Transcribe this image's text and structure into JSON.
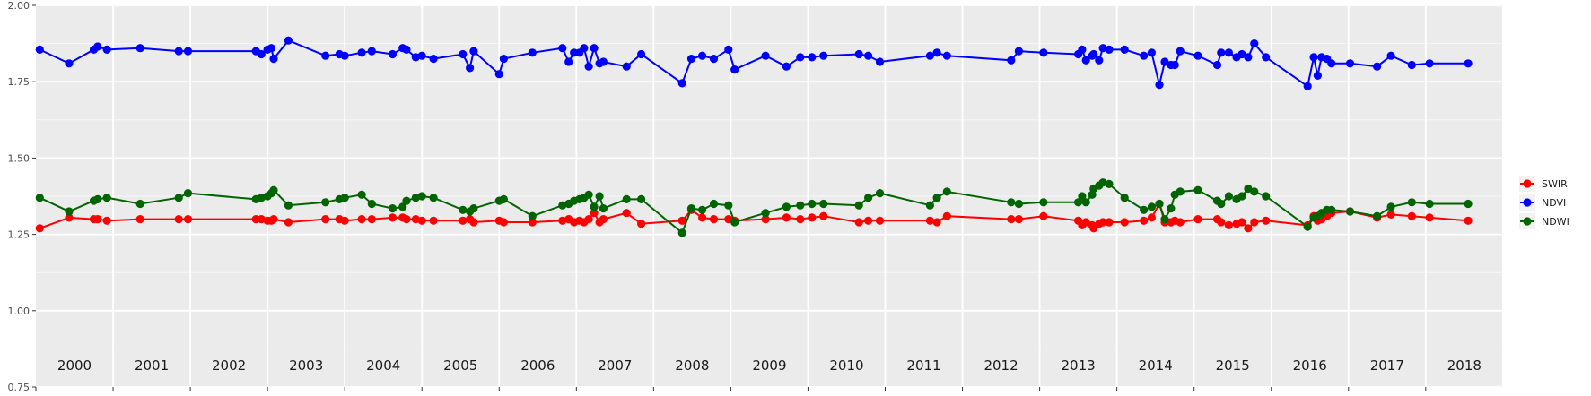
{
  "chart_data": {
    "type": "line",
    "title": "",
    "xlabel": "",
    "ylabel": "",
    "xlim": [
      2000.0,
      2018.99
    ],
    "ylim": [
      0.75,
      2.0
    ],
    "yticks": [
      "0.75",
      "1.00",
      "1.25",
      "1.50",
      "1.75",
      "2.00"
    ],
    "year_labels": [
      "2000",
      "2001",
      "2002",
      "2003",
      "2004",
      "2005",
      "2006",
      "2007",
      "2008",
      "2009",
      "2010",
      "2011",
      "2012",
      "2013",
      "2014",
      "2015",
      "2016",
      "2017",
      "2018"
    ],
    "grid": true,
    "legend_position": "right",
    "series": [
      {
        "name": "SWIR",
        "color": "#ff0000",
        "x": [
          2000.05,
          2000.43,
          2000.75,
          2000.8,
          2000.92,
          2001.35,
          2001.85,
          2001.97,
          2002.85,
          2002.92,
          2003.0,
          2003.05,
          2003.08,
          2003.27,
          2003.75,
          2003.93,
          2004.0,
          2004.22,
          2004.35,
          2004.62,
          2004.75,
          2004.8,
          2004.92,
          2005.0,
          2005.15,
          2005.53,
          2005.62,
          2005.67,
          2006.0,
          2006.06,
          2006.43,
          2006.82,
          2006.9,
          2006.97,
          2007.04,
          2007.1,
          2007.16,
          2007.23,
          2007.3,
          2007.35,
          2007.65,
          2007.84,
          2008.37,
          2008.49,
          2008.63,
          2008.78,
          2008.97,
          2009.05,
          2009.45,
          2009.72,
          2009.9,
          2010.05,
          2010.2,
          2010.66,
          2010.78,
          2010.93,
          2011.58,
          2011.67,
          2011.8,
          2012.63,
          2012.73,
          2013.05,
          2013.5,
          2013.55,
          2013.6,
          2013.68,
          2013.7,
          2013.77,
          2013.82,
          2013.9,
          2014.1,
          2014.35,
          2014.45,
          2014.55,
          2014.62,
          2014.7,
          2014.75,
          2014.82,
          2015.05,
          2015.3,
          2015.35,
          2015.45,
          2015.55,
          2015.62,
          2015.7,
          2015.78,
          2015.93,
          2016.47,
          2016.55,
          2016.6,
          2016.65,
          2016.72,
          2016.78,
          2017.02,
          2017.37,
          2017.55,
          2017.82,
          2018.05,
          2018.55
        ],
        "values": [
          1.27,
          1.305,
          1.3,
          1.3,
          1.295,
          1.3,
          1.3,
          1.3,
          1.3,
          1.3,
          1.295,
          1.295,
          1.3,
          1.29,
          1.3,
          1.3,
          1.295,
          1.3,
          1.3,
          1.305,
          1.305,
          1.3,
          1.3,
          1.295,
          1.295,
          1.295,
          1.3,
          1.29,
          1.295,
          1.29,
          1.29,
          1.295,
          1.3,
          1.29,
          1.295,
          1.29,
          1.3,
          1.32,
          1.29,
          1.3,
          1.32,
          1.285,
          1.295,
          1.33,
          1.305,
          1.3,
          1.3,
          1.295,
          1.3,
          1.305,
          1.3,
          1.305,
          1.31,
          1.29,
          1.295,
          1.295,
          1.295,
          1.29,
          1.31,
          1.3,
          1.3,
          1.31,
          1.295,
          1.28,
          1.29,
          1.28,
          1.27,
          1.285,
          1.29,
          1.29,
          1.29,
          1.295,
          1.305,
          1.35,
          1.29,
          1.29,
          1.295,
          1.29,
          1.3,
          1.3,
          1.29,
          1.28,
          1.285,
          1.29,
          1.27,
          1.29,
          1.295,
          1.28,
          1.31,
          1.295,
          1.3,
          1.31,
          1.32,
          1.325,
          1.305,
          1.315,
          1.31,
          1.305,
          1.295
        ]
      },
      {
        "name": "NDVI",
        "color": "#0000ff",
        "x": [
          2000.05,
          2000.43,
          2000.75,
          2000.8,
          2000.92,
          2001.35,
          2001.85,
          2001.97,
          2002.85,
          2002.92,
          2003.0,
          2003.05,
          2003.08,
          2003.27,
          2003.75,
          2003.93,
          2004.0,
          2004.22,
          2004.35,
          2004.62,
          2004.75,
          2004.8,
          2004.92,
          2005.0,
          2005.15,
          2005.53,
          2005.62,
          2005.67,
          2006.0,
          2006.06,
          2006.43,
          2006.82,
          2006.9,
          2006.97,
          2007.04,
          2007.1,
          2007.16,
          2007.23,
          2007.3,
          2007.35,
          2007.65,
          2007.84,
          2008.37,
          2008.49,
          2008.63,
          2008.78,
          2008.97,
          2009.05,
          2009.45,
          2009.72,
          2009.9,
          2010.05,
          2010.2,
          2010.66,
          2010.78,
          2010.93,
          2011.58,
          2011.67,
          2011.8,
          2012.63,
          2012.73,
          2013.05,
          2013.5,
          2013.55,
          2013.6,
          2013.68,
          2013.7,
          2013.77,
          2013.82,
          2013.9,
          2014.1,
          2014.35,
          2014.45,
          2014.55,
          2014.62,
          2014.7,
          2014.75,
          2014.82,
          2015.05,
          2015.3,
          2015.35,
          2015.45,
          2015.55,
          2015.62,
          2015.7,
          2015.78,
          2015.93,
          2016.47,
          2016.55,
          2016.6,
          2016.65,
          2016.72,
          2016.78,
          2017.02,
          2017.37,
          2017.55,
          2017.82,
          2018.05,
          2018.55
        ],
        "values": [
          1.855,
          1.81,
          1.855,
          1.865,
          1.855,
          1.86,
          1.85,
          1.85,
          1.85,
          1.84,
          1.855,
          1.86,
          1.825,
          1.885,
          1.835,
          1.84,
          1.835,
          1.845,
          1.85,
          1.84,
          1.86,
          1.855,
          1.83,
          1.835,
          1.825,
          1.84,
          1.795,
          1.85,
          1.775,
          1.825,
          1.845,
          1.86,
          1.815,
          1.845,
          1.845,
          1.86,
          1.8,
          1.86,
          1.81,
          1.815,
          1.8,
          1.84,
          1.745,
          1.825,
          1.835,
          1.825,
          1.855,
          1.79,
          1.835,
          1.8,
          1.83,
          1.83,
          1.835,
          1.84,
          1.835,
          1.815,
          1.835,
          1.845,
          1.835,
          1.82,
          1.85,
          1.845,
          1.84,
          1.855,
          1.82,
          1.835,
          1.84,
          1.82,
          1.86,
          1.855,
          1.855,
          1.835,
          1.845,
          1.74,
          1.815,
          1.805,
          1.805,
          1.85,
          1.835,
          1.805,
          1.845,
          1.845,
          1.83,
          1.84,
          1.83,
          1.875,
          1.83,
          1.735,
          1.83,
          1.77,
          1.83,
          1.825,
          1.81,
          1.81,
          1.8,
          1.835,
          1.805,
          1.81,
          1.81
        ]
      },
      {
        "name": "NDWI",
        "color": "#006400",
        "x": [
          2000.05,
          2000.43,
          2000.75,
          2000.8,
          2000.92,
          2001.35,
          2001.85,
          2001.97,
          2002.85,
          2002.92,
          2003.0,
          2003.05,
          2003.08,
          2003.27,
          2003.75,
          2003.93,
          2004.0,
          2004.22,
          2004.35,
          2004.62,
          2004.75,
          2004.8,
          2004.92,
          2005.0,
          2005.15,
          2005.53,
          2005.62,
          2005.67,
          2006.0,
          2006.06,
          2006.43,
          2006.82,
          2006.9,
          2006.97,
          2007.04,
          2007.1,
          2007.16,
          2007.23,
          2007.3,
          2007.35,
          2007.65,
          2007.84,
          2008.37,
          2008.49,
          2008.63,
          2008.78,
          2008.97,
          2009.05,
          2009.45,
          2009.72,
          2009.9,
          2010.05,
          2010.2,
          2010.66,
          2010.78,
          2010.93,
          2011.58,
          2011.67,
          2011.8,
          2012.63,
          2012.73,
          2013.05,
          2013.5,
          2013.55,
          2013.6,
          2013.68,
          2013.7,
          2013.77,
          2013.82,
          2013.9,
          2014.1,
          2014.35,
          2014.45,
          2014.55,
          2014.62,
          2014.7,
          2014.75,
          2014.82,
          2015.05,
          2015.3,
          2015.35,
          2015.45,
          2015.55,
          2015.62,
          2015.7,
          2015.78,
          2015.93,
          2016.47,
          2016.55,
          2016.6,
          2016.65,
          2016.72,
          2016.78,
          2017.02,
          2017.37,
          2017.55,
          2017.82,
          2018.05,
          2018.55
        ],
        "values": [
          1.37,
          1.325,
          1.36,
          1.365,
          1.37,
          1.35,
          1.37,
          1.385,
          1.365,
          1.37,
          1.375,
          1.385,
          1.395,
          1.345,
          1.355,
          1.365,
          1.37,
          1.38,
          1.35,
          1.335,
          1.34,
          1.36,
          1.37,
          1.375,
          1.37,
          1.33,
          1.325,
          1.335,
          1.36,
          1.365,
          1.31,
          1.345,
          1.35,
          1.36,
          1.365,
          1.37,
          1.38,
          1.34,
          1.375,
          1.335,
          1.365,
          1.365,
          1.255,
          1.335,
          1.33,
          1.35,
          1.345,
          1.29,
          1.32,
          1.34,
          1.345,
          1.35,
          1.35,
          1.345,
          1.37,
          1.385,
          1.345,
          1.37,
          1.39,
          1.355,
          1.35,
          1.355,
          1.355,
          1.375,
          1.355,
          1.38,
          1.4,
          1.41,
          1.42,
          1.415,
          1.37,
          1.33,
          1.34,
          1.35,
          1.3,
          1.335,
          1.38,
          1.39,
          1.395,
          1.36,
          1.35,
          1.375,
          1.365,
          1.375,
          1.4,
          1.39,
          1.375,
          1.275,
          1.305,
          1.31,
          1.32,
          1.33,
          1.33,
          1.325,
          1.31,
          1.34,
          1.355,
          1.35,
          1.35
        ]
      }
    ]
  }
}
